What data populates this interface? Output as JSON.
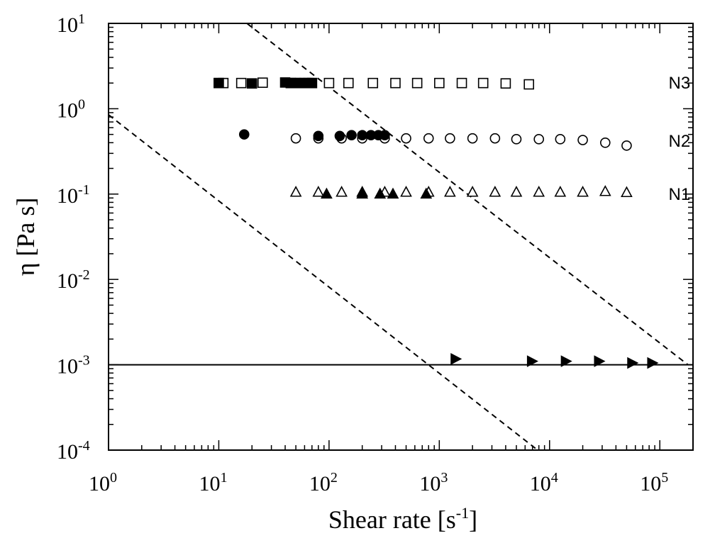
{
  "chart_data": {
    "type": "scatter",
    "title": "",
    "xscale": "log",
    "yscale": "log",
    "xlim": [
      1,
      200000
    ],
    "ylim": [
      0.0001,
      10
    ],
    "xlabel": {
      "main": "Shear rate [s",
      "sup": "-1",
      "close": "]"
    },
    "ylabel": "η [Pa s]",
    "x_ticks": [
      {
        "base": "10",
        "exp": "0"
      },
      {
        "base": "10",
        "exp": "1"
      },
      {
        "base": "10",
        "exp": "2"
      },
      {
        "base": "10",
        "exp": "3"
      },
      {
        "base": "10",
        "exp": "4"
      },
      {
        "base": "10",
        "exp": "5"
      }
    ],
    "y_ticks": [
      {
        "base": "10",
        "exp": "-4"
      },
      {
        "base": "10",
        "exp": "-3"
      },
      {
        "base": "10",
        "exp": "-2"
      },
      {
        "base": "10",
        "exp": "-1"
      },
      {
        "base": "10",
        "exp": "0"
      },
      {
        "base": "10",
        "exp": "1"
      }
    ],
    "labels": [
      {
        "text": "N3",
        "x": 120000,
        "y": 2.0
      },
      {
        "text": "N2",
        "x": 120000,
        "y": 0.42
      },
      {
        "text": "N1",
        "x": 120000,
        "y": 0.1
      }
    ],
    "series": [
      {
        "marker": "square-open",
        "points": [
          [
            10,
            2.0
          ],
          [
            11,
            2.0
          ],
          [
            16,
            2.0
          ],
          [
            25,
            2.02
          ],
          [
            45,
            2.0
          ],
          [
            50,
            2.0
          ],
          [
            62,
            2.0
          ],
          [
            70,
            2.0
          ],
          [
            100,
            2.0
          ],
          [
            150,
            2.0
          ],
          [
            250,
            2.0
          ],
          [
            400,
            2.0
          ],
          [
            630,
            2.0
          ],
          [
            1000,
            2.0
          ],
          [
            1600,
            2.0
          ],
          [
            2500,
            2.0
          ],
          [
            4000,
            1.98
          ],
          [
            6500,
            1.93
          ]
        ]
      },
      {
        "marker": "square-filled",
        "points": [
          [
            10,
            2.0
          ],
          [
            20,
            1.98
          ],
          [
            40,
            2.03
          ],
          [
            45,
            2.0
          ],
          [
            50,
            2.0
          ],
          [
            55,
            2.0
          ],
          [
            60,
            2.0
          ],
          [
            65,
            2.0
          ],
          [
            70,
            2.0
          ]
        ]
      },
      {
        "marker": "circle-open",
        "points": [
          [
            50,
            0.45
          ],
          [
            80,
            0.45
          ],
          [
            130,
            0.45
          ],
          [
            200,
            0.45
          ],
          [
            320,
            0.45
          ],
          [
            500,
            0.45
          ],
          [
            800,
            0.45
          ],
          [
            1250,
            0.45
          ],
          [
            2000,
            0.45
          ],
          [
            3200,
            0.45
          ],
          [
            5000,
            0.44
          ],
          [
            8000,
            0.44
          ],
          [
            12500,
            0.44
          ],
          [
            20000,
            0.43
          ],
          [
            32000,
            0.4
          ],
          [
            50000,
            0.37
          ]
        ]
      },
      {
        "marker": "circle-filled",
        "points": [
          [
            17,
            0.5
          ],
          [
            80,
            0.48
          ],
          [
            125,
            0.48
          ],
          [
            160,
            0.49
          ],
          [
            200,
            0.49
          ],
          [
            240,
            0.49
          ],
          [
            280,
            0.49
          ],
          [
            320,
            0.49
          ]
        ]
      },
      {
        "marker": "triangle-up-open",
        "points": [
          [
            50,
            0.105
          ],
          [
            80,
            0.105
          ],
          [
            130,
            0.105
          ],
          [
            200,
            0.105
          ],
          [
            320,
            0.105
          ],
          [
            500,
            0.105
          ],
          [
            800,
            0.105
          ],
          [
            1250,
            0.105
          ],
          [
            2000,
            0.105
          ],
          [
            3200,
            0.105
          ],
          [
            5000,
            0.105
          ],
          [
            8000,
            0.105
          ],
          [
            12500,
            0.105
          ],
          [
            20000,
            0.105
          ],
          [
            32000,
            0.107
          ],
          [
            50000,
            0.104
          ]
        ]
      },
      {
        "marker": "triangle-up-filled",
        "points": [
          [
            95,
            0.1
          ],
          [
            200,
            0.1
          ],
          [
            290,
            0.1
          ],
          [
            380,
            0.1
          ],
          [
            760,
            0.1
          ]
        ]
      },
      {
        "marker": "triangle-right-filled",
        "points": [
          [
            1400,
            0.00117
          ],
          [
            6900,
            0.0011
          ],
          [
            14000,
            0.0011
          ],
          [
            28000,
            0.0011
          ],
          [
            56000,
            0.00105
          ],
          [
            85000,
            0.00105
          ]
        ]
      }
    ],
    "lines": [
      {
        "style": "solid",
        "points": [
          [
            1,
            0.001
          ],
          [
            200000,
            0.001
          ]
        ]
      },
      {
        "style": "dashed",
        "points": [
          [
            1,
            0.85
          ],
          [
            7800,
            0.0001
          ]
        ]
      },
      {
        "style": "dashed",
        "points": [
          [
            18,
            10
          ],
          [
            180000,
            0.001
          ]
        ]
      }
    ]
  }
}
